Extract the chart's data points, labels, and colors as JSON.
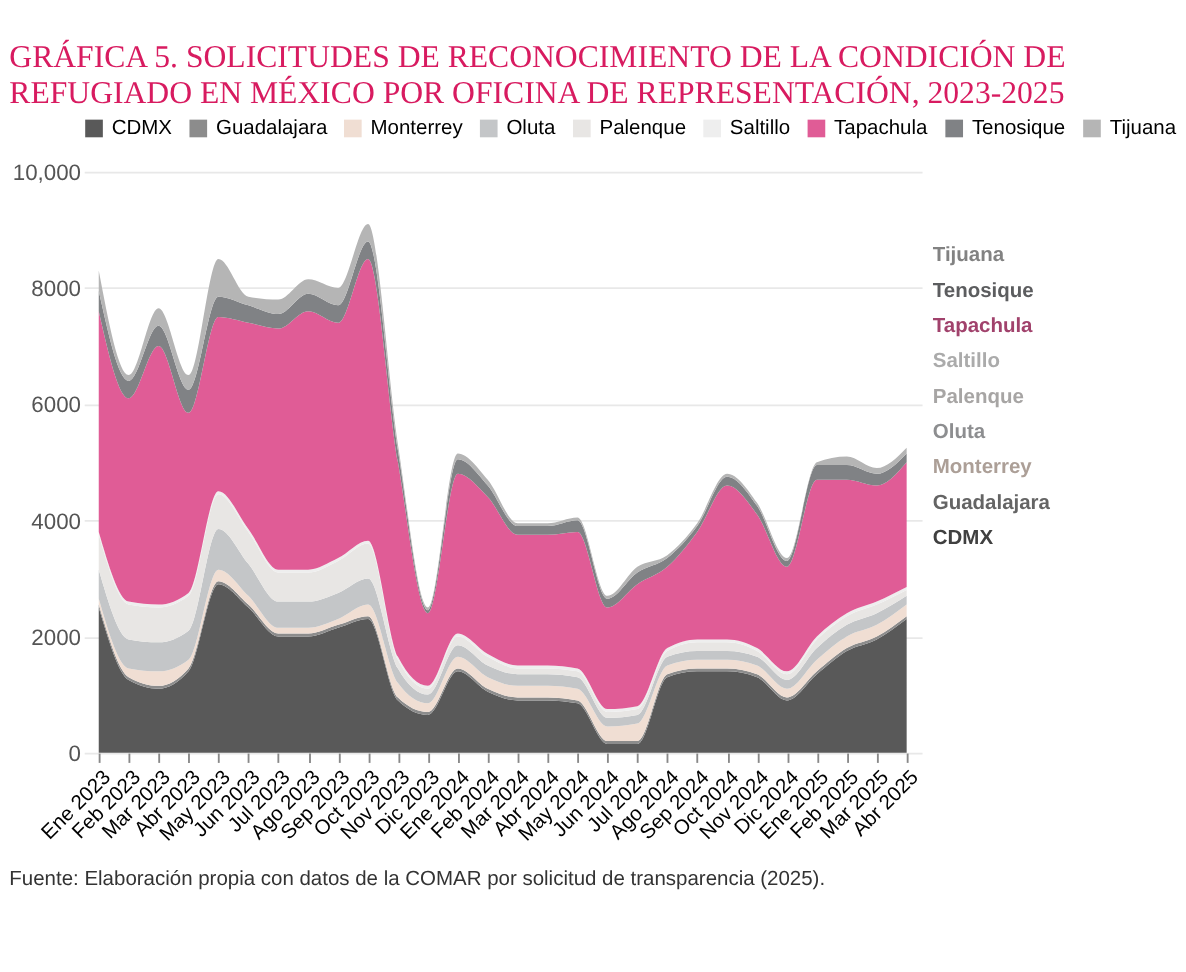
{
  "chart_data": {
    "type": "area",
    "stacked": true,
    "title": "GRÁFICA 5. SOLICITUDES DE RECONOCIMIENTO DE LA CONDICIÓN DE REFUGIADO EN MÉXICO POR OFICINA DE REPRESENTACIÓN, 2023-2025",
    "categories": [
      "Ene 2023",
      "Feb 2023",
      "Mar 2023",
      "Abr 2023",
      "May 2023",
      "Jun 2023",
      "Jul 2023",
      "Ago 2023",
      "Sep 2023",
      "Oct 2023",
      "Nov 2023",
      "Dic 2023",
      "Ene 2024",
      "Feb 2024",
      "Mar 2024",
      "Abr 2024",
      "May 2024",
      "Jun 2024",
      "Jul 2024",
      "Ago 2024",
      "Sep 2024",
      "Oct 2024",
      "Nov 2024",
      "Dic 2024",
      "Ene 2025",
      "Feb 2025",
      "Mar 2025",
      "Abr 2025"
    ],
    "series": [
      {
        "name": "CDMX",
        "color": "#595959",
        "values": [
          2500,
          1250,
          1100,
          1400,
          2900,
          2500,
          2000,
          2000,
          2150,
          2300,
          900,
          650,
          1400,
          1050,
          900,
          900,
          850,
          150,
          150,
          1300,
          1400,
          1400,
          1300,
          900,
          1350,
          1750,
          1950,
          2300
        ]
      },
      {
        "name": "Guadalajara",
        "color": "#8c8c8c",
        "values": [
          50,
          50,
          50,
          50,
          50,
          50,
          50,
          50,
          50,
          50,
          50,
          50,
          50,
          50,
          50,
          50,
          50,
          50,
          50,
          50,
          50,
          50,
          50,
          50,
          50,
          50,
          50,
          50
        ]
      },
      {
        "name": "Monterrey",
        "color": "#f0ded3",
        "values": [
          100,
          150,
          250,
          150,
          200,
          150,
          100,
          100,
          100,
          200,
          250,
          150,
          200,
          200,
          200,
          200,
          200,
          250,
          300,
          150,
          150,
          150,
          150,
          150,
          200,
          200,
          200,
          200
        ]
      },
      {
        "name": "Oluta",
        "color": "#c4c6c8",
        "values": [
          500,
          500,
          500,
          500,
          700,
          550,
          450,
          450,
          450,
          450,
          250,
          150,
          200,
          200,
          200,
          200,
          200,
          150,
          150,
          150,
          150,
          150,
          150,
          150,
          200,
          200,
          200,
          150
        ]
      },
      {
        "name": "Palenque",
        "color": "#e8e6e4",
        "values": [
          600,
          600,
          600,
          600,
          600,
          550,
          500,
          500,
          550,
          600,
          150,
          100,
          150,
          150,
          100,
          100,
          100,
          100,
          100,
          100,
          150,
          150,
          100,
          100,
          150,
          150,
          150,
          100
        ]
      },
      {
        "name": "Saltillo",
        "color": "#eeeeee",
        "values": [
          50,
          50,
          50,
          50,
          50,
          50,
          50,
          50,
          50,
          50,
          50,
          50,
          50,
          50,
          50,
          50,
          50,
          50,
          50,
          50,
          50,
          50,
          50,
          50,
          50,
          50,
          50,
          50
        ]
      },
      {
        "name": "Tapachula",
        "color": "#e05c96",
        "values": [
          3800,
          3500,
          4450,
          3100,
          3000,
          3550,
          4150,
          4450,
          4050,
          4850,
          3350,
          1250,
          2750,
          2700,
          2250,
          2250,
          2350,
          1750,
          2100,
          1400,
          1850,
          2650,
          2300,
          1800,
          2700,
          2300,
          2000,
          2150
        ]
      },
      {
        "name": "Tenosique",
        "color": "#808285",
        "values": [
          350,
          300,
          350,
          400,
          350,
          300,
          250,
          300,
          300,
          300,
          200,
          50,
          250,
          200,
          150,
          150,
          200,
          150,
          200,
          150,
          100,
          150,
          150,
          100,
          250,
          250,
          200,
          150
        ]
      },
      {
        "name": "Tijuana",
        "color": "#b5b5b5",
        "values": [
          350,
          100,
          300,
          250,
          650,
          150,
          250,
          250,
          300,
          300,
          100,
          50,
          100,
          100,
          50,
          50,
          50,
          50,
          100,
          50,
          50,
          50,
          50,
          50,
          50,
          150,
          100,
          100
        ]
      }
    ],
    "ylim": [
      0,
      10000
    ],
    "yticks": [
      0,
      2000,
      4000,
      6000,
      8000,
      {
        "value": 10000,
        "label": "10,000"
      }
    ],
    "grid": "y",
    "legend": "top",
    "annotations": [
      "Fuente: Elaboración propia con datos de la COMAR por solicitud de transparencia (2025)."
    ]
  }
}
